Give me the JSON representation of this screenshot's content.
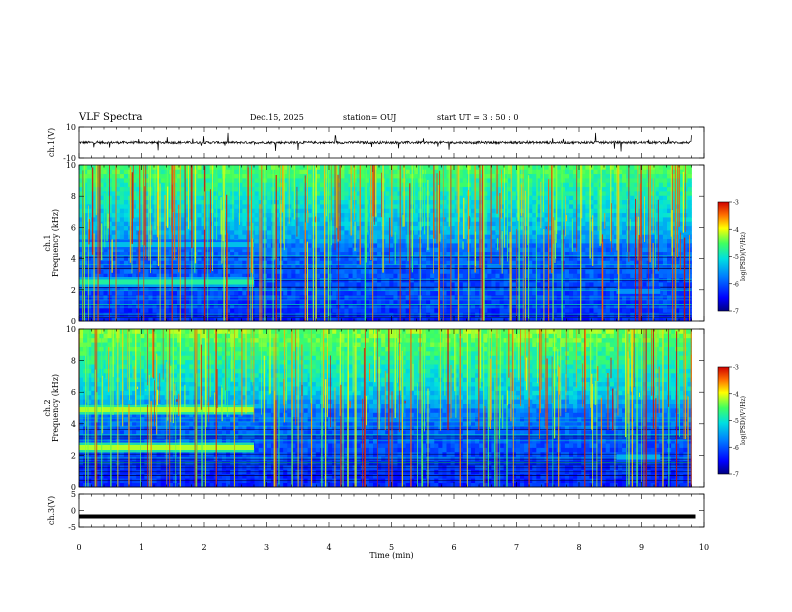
{
  "header": {
    "title": "VLF Spectra",
    "date": "Dec.15, 2025",
    "station": "station= OUJ",
    "start": "start  UT =   3  : 50 : 0"
  },
  "chart_data": [
    {
      "type": "line",
      "panel": "ch1",
      "ylabel": "ch.1(V)",
      "ylim": [
        -10,
        10
      ],
      "yticks": [
        10,
        -10
      ],
      "xlim": [
        0,
        10
      ],
      "baseline": 0,
      "trace_color": "#000000"
    },
    {
      "type": "heatmap",
      "panel": "spec1",
      "ylabel": "ch.1\nFrequency (kHz)",
      "ylim": [
        0,
        10
      ],
      "yticks": [
        0,
        2,
        4,
        6,
        8,
        10
      ],
      "xlim": [
        0,
        10
      ],
      "colorbar": {
        "label": "log(PSD)(V²/Hz)",
        "ticks": [
          -3,
          -4,
          -5,
          -6,
          -7
        ],
        "range": [
          -7,
          -3
        ]
      },
      "bands": [
        {
          "f_kHz": 2.5,
          "t_end_min": 2.8,
          "level": -4.8
        },
        {
          "f_kHz": 4.9,
          "t_end_min": 2.8,
          "level": -5.3
        },
        {
          "f_kHz": 1.9,
          "t_start_min": 8.6,
          "t_end_min": 9.3,
          "level": -5.6
        }
      ]
    },
    {
      "type": "heatmap",
      "panel": "spec2",
      "ylabel": "ch.2\nFrequency (kHz)",
      "ylim": [
        0,
        10
      ],
      "yticks": [
        0,
        2,
        4,
        6,
        8,
        10
      ],
      "xlim": [
        0,
        10
      ],
      "colorbar": {
        "label": "log(PSD)(V²/Hz)",
        "ticks": [
          -3,
          -4,
          -5,
          -6,
          -7
        ],
        "range": [
          -7,
          -3
        ]
      },
      "bands": [
        {
          "f_kHz": 2.5,
          "t_end_min": 2.8,
          "level": -4.2
        },
        {
          "f_kHz": 4.9,
          "t_end_min": 2.8,
          "level": -4.2
        },
        {
          "f_kHz": 1.9,
          "t_start_min": 8.6,
          "t_end_min": 9.3,
          "level": -5.4
        }
      ]
    },
    {
      "type": "line",
      "panel": "ch3",
      "ylabel": "ch.3(V)",
      "ylim": [
        -5,
        5
      ],
      "yticks": [
        5,
        0,
        -5
      ],
      "xlim": [
        0,
        10
      ],
      "baseline": -1.8,
      "trace_color": "#000000"
    }
  ],
  "xaxis": {
    "label": "Time (min)",
    "ticks": [
      "0",
      "1",
      "2",
      "3",
      "4",
      "5",
      "6",
      "7",
      "8",
      "9",
      "10"
    ],
    "data_end_min": 9.8
  }
}
